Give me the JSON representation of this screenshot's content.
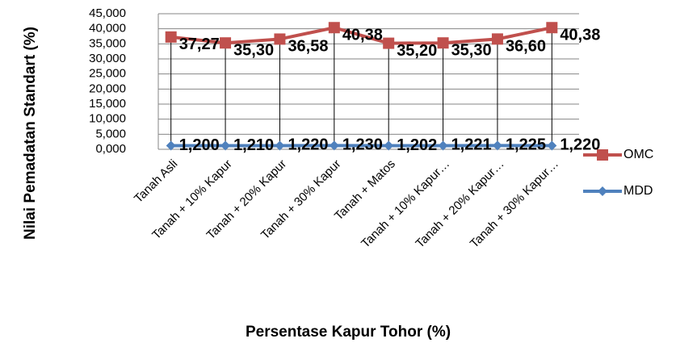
{
  "chart_data": {
    "type": "line",
    "x_label": "Persentase Kapur Tohor (%)",
    "y_label": "Nilai Pemadatan Standart (%)",
    "categories": [
      "Tanah Asli",
      "Tanah + 10% Kapur",
      "Tanah + 20% Kapur",
      "Tanah + 30% Kapur",
      "Tanah + Matos",
      "Tanah + 10% Kapur…",
      "Tanah + 20% Kapur…",
      "Tanah + 30% Kapur…"
    ],
    "series": [
      {
        "name": "OMC",
        "color": "#c0504d",
        "marker": "square",
        "values": [
          37.27,
          35.3,
          36.58,
          40.38,
          35.2,
          35.3,
          36.6,
          40.38
        ],
        "value_labels": [
          "37,27",
          "35,30",
          "36,58",
          "40,38",
          "35,20",
          "35,30",
          "36,60",
          "40,38"
        ]
      },
      {
        "name": "MDD",
        "color": "#4f81bd",
        "marker": "diamond",
        "values": [
          1.2,
          1.21,
          1.22,
          1.23,
          1.202,
          1.221,
          1.225,
          1.22
        ],
        "value_labels": [
          "1,200",
          "1,210",
          "1,220",
          "1,230",
          "1,202",
          "1,221",
          "1,225",
          "1,220"
        ]
      }
    ],
    "ylim": [
      0,
      45
    ],
    "yticks": [
      {
        "value": 0,
        "label": "0,000"
      },
      {
        "value": 5,
        "label": "5,000"
      },
      {
        "value": 10,
        "label": "10,000"
      },
      {
        "value": 15,
        "label": "15,000"
      },
      {
        "value": 20,
        "label": "20,000"
      },
      {
        "value": 25,
        "label": "25,000"
      },
      {
        "value": 30,
        "label": "30,000"
      },
      {
        "value": 35,
        "label": "35,000"
      },
      {
        "value": 40,
        "label": "40,000"
      },
      {
        "value": 45,
        "label": "45,000"
      }
    ],
    "grid": true,
    "legend": "right",
    "drop_lines": true
  }
}
